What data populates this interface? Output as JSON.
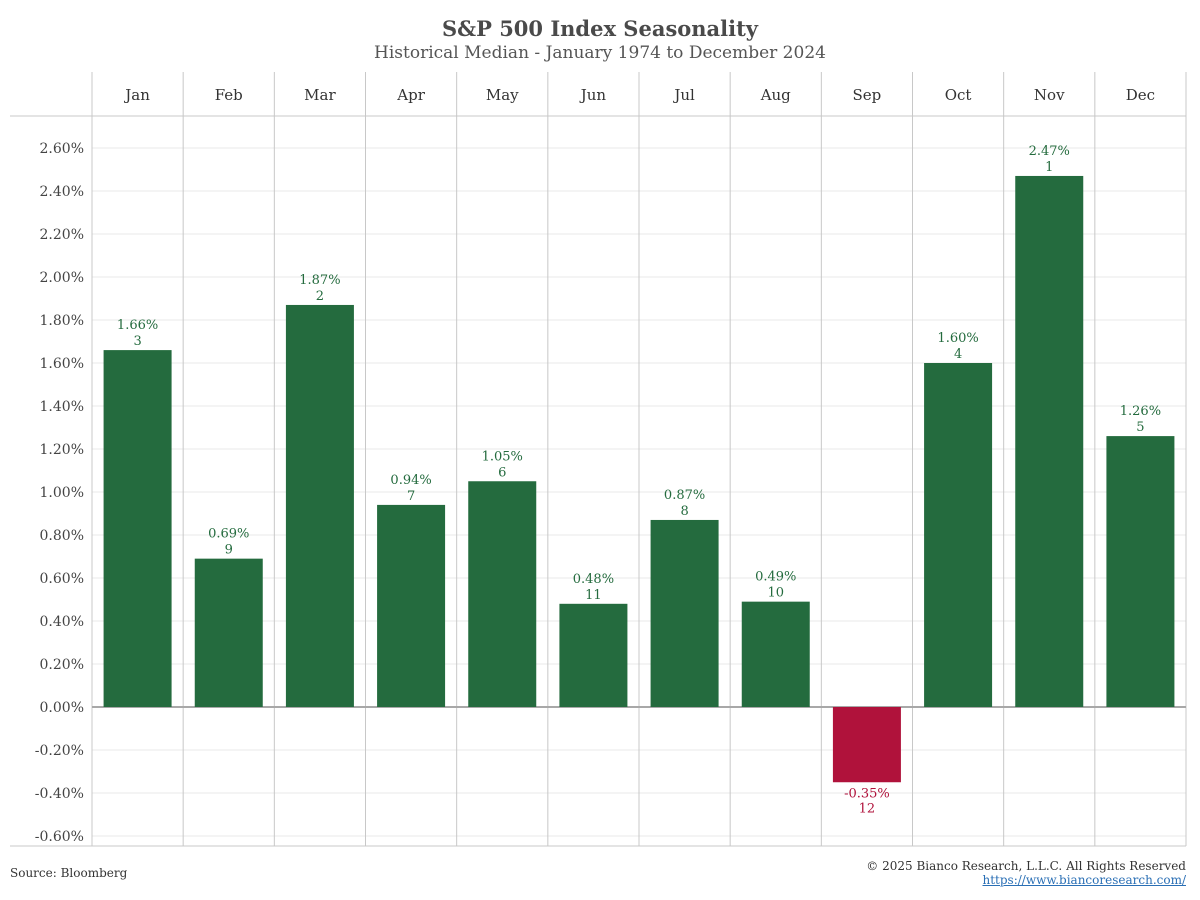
{
  "header": {
    "title": "S&P 500 Index Seasonality",
    "subtitle": "Historical Median - January 1974 to December 2024"
  },
  "footer": {
    "source": "Source: Bloomberg",
    "copyright": "© 2025 Bianco Research, L.L.C. All Rights Reserved",
    "url": "https://www.biancoresearch.com/"
  },
  "colors": {
    "positive": "#246b3e",
    "negative": "#b0123b",
    "grid": "#e8e8e8",
    "panel_border": "#c8c8c8",
    "zero_line": "#a8a8a8"
  },
  "chart_data": {
    "type": "bar",
    "title": "S&P 500 Index Seasonality",
    "subtitle": "Historical Median - January 1974 to December 2024",
    "categories": [
      "Jan",
      "Feb",
      "Mar",
      "Apr",
      "May",
      "Jun",
      "Jul",
      "Aug",
      "Sep",
      "Oct",
      "Nov",
      "Dec"
    ],
    "values": [
      1.66,
      0.69,
      1.87,
      0.94,
      1.05,
      0.48,
      0.87,
      0.49,
      -0.35,
      1.6,
      2.47,
      1.26
    ],
    "value_labels": [
      "1.66%",
      "0.69%",
      "1.87%",
      "0.94%",
      "1.05%",
      "0.48%",
      "0.87%",
      "0.49%",
      "-0.35%",
      "1.60%",
      "2.47%",
      "1.26%"
    ],
    "ranks": [
      "3",
      "9",
      "2",
      "7",
      "6",
      "11",
      "8",
      "10",
      "12",
      "4",
      "1",
      "5"
    ],
    "ylim": [
      -0.6,
      2.6
    ],
    "yticks": [
      2.6,
      2.4,
      2.2,
      2.0,
      1.8,
      1.6,
      1.4,
      1.2,
      1.0,
      0.8,
      0.6,
      0.4,
      0.2,
      0.0,
      -0.2,
      -0.4,
      -0.6
    ],
    "ytick_labels": [
      "2.60%",
      "2.40%",
      "2.20%",
      "2.00%",
      "1.80%",
      "1.60%",
      "1.40%",
      "1.20%",
      "1.00%",
      "0.80%",
      "0.60%",
      "0.40%",
      "0.20%",
      "0.00%",
      "-0.20%",
      "-0.40%",
      "-0.60%"
    ],
    "xlabel": "",
    "ylabel": "",
    "grid": true,
    "legend": "none"
  }
}
